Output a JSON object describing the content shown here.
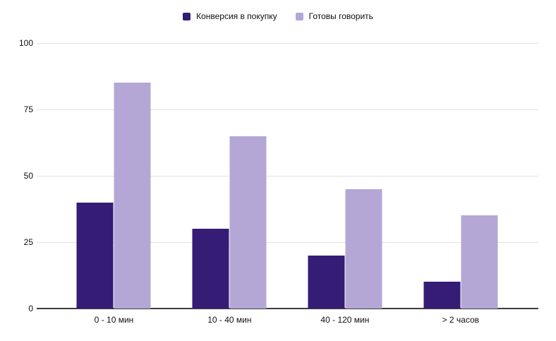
{
  "chart_data": {
    "type": "bar",
    "title": "",
    "categories": [
      "0 - 10 мин",
      "10 - 40 мин",
      "40 - 120 мин",
      "> 2 часов"
    ],
    "series": [
      {
        "name": "Конверсия в покупку",
        "color": "#351c75",
        "values": [
          40,
          30,
          20,
          10
        ]
      },
      {
        "name": "Готовы говорить",
        "color": "#b4a7d6",
        "values": [
          85,
          65,
          45,
          35
        ]
      }
    ],
    "xlabel": "",
    "ylabel": "",
    "ylim": [
      0,
      100
    ],
    "yticks": [
      0,
      25,
      50,
      75,
      100
    ],
    "grid": true,
    "legend_position": "top",
    "colors": {
      "gridline": "#e2e2e2",
      "axis_line": "#3f3f3f",
      "text": "#0f0f0f",
      "background": "#ffffff"
    }
  }
}
